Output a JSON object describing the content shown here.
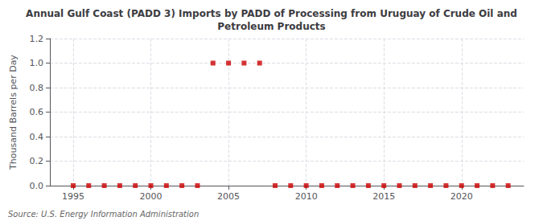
{
  "chart_data": {
    "type": "scatter",
    "title": "Annual Gulf Coast (PADD 3) Imports by PADD of Processing from Uruguay of Crude Oil and\nPetroleum Products",
    "ylabel": "Thousand Barrels per Day",
    "annotation": "Source: U.S. Energy Information Administration",
    "x": [
      1995,
      1996,
      1997,
      1998,
      1999,
      2000,
      2001,
      2002,
      2003,
      2004,
      2005,
      2006,
      2007,
      2008,
      2009,
      2010,
      2011,
      2012,
      2013,
      2014,
      2015,
      2016,
      2017,
      2018,
      2019,
      2020,
      2021,
      2022,
      2023
    ],
    "values": [
      0.0,
      0.0,
      0.0,
      0.0,
      0.0,
      0.0,
      0.0,
      0.0,
      0.0,
      1.0,
      1.0,
      1.0,
      1.0,
      0.0,
      0.0,
      0.0,
      0.0,
      0.0,
      0.0,
      0.0,
      0.0,
      0.0,
      0.0,
      0.0,
      0.0,
      0.0,
      0.0,
      0.0,
      0.0
    ],
    "color": "#cc0000",
    "marker": "square",
    "xlim": [
      1993.5,
      2024
    ],
    "xticks": [
      1995,
      2000,
      2005,
      2010,
      2015,
      2020
    ],
    "ylim": [
      0,
      1.2
    ],
    "yticks": [
      {
        "value": 0,
        "label": "0.0"
      },
      0.2,
      0.4,
      0.6,
      0.8,
      {
        "value": 1,
        "label": "1.0"
      },
      1.2
    ],
    "grid": true
  }
}
